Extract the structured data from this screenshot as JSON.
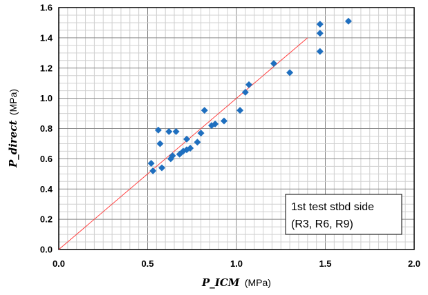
{
  "chart_data": {
    "type": "scatter",
    "xlabel": "P_ICM",
    "xlabel_unit": "(MPa)",
    "ylabel": "P_direct",
    "ylabel_unit": "(MPa)",
    "xlim": [
      0.0,
      2.0
    ],
    "ylim": [
      0.0,
      1.6
    ],
    "x_ticks": [
      "0.0",
      "0.5",
      "1.0",
      "1.5",
      "2.0"
    ],
    "y_ticks": [
      "0.0",
      "0.2",
      "0.4",
      "0.6",
      "0.8",
      "1.0",
      "1.2",
      "1.4",
      "1.6"
    ],
    "x_minor_step": 0.05,
    "y_minor_step": 0.05,
    "grid": true,
    "marker_color": "#1f6fbf",
    "series": [
      {
        "marker": "diamond",
        "points": [
          [
            0.52,
            0.57
          ],
          [
            0.53,
            0.52
          ],
          [
            0.56,
            0.79
          ],
          [
            0.57,
            0.7
          ],
          [
            0.58,
            0.54
          ],
          [
            0.62,
            0.78
          ],
          [
            0.63,
            0.6
          ],
          [
            0.64,
            0.62
          ],
          [
            0.66,
            0.78
          ],
          [
            0.68,
            0.63
          ],
          [
            0.7,
            0.65
          ],
          [
            0.72,
            0.73
          ],
          [
            0.72,
            0.66
          ],
          [
            0.74,
            0.67
          ],
          [
            0.78,
            0.71
          ],
          [
            0.8,
            0.77
          ],
          [
            0.82,
            0.92
          ],
          [
            0.86,
            0.82
          ],
          [
            0.88,
            0.83
          ],
          [
            0.93,
            0.85
          ],
          [
            1.02,
            0.92
          ],
          [
            1.05,
            1.04
          ],
          [
            1.07,
            1.09
          ],
          [
            1.21,
            1.23
          ],
          [
            1.3,
            1.17
          ],
          [
            1.47,
            1.49
          ],
          [
            1.47,
            1.43
          ],
          [
            1.47,
            1.31
          ],
          [
            1.63,
            1.51
          ]
        ]
      }
    ],
    "reference_line": {
      "from": [
        0.0,
        0.0
      ],
      "to": [
        1.4,
        1.4
      ],
      "color": "#ff4040"
    },
    "annotation": {
      "line1": "1st test stbd side",
      "line2": "(R3, R6, R9)"
    }
  }
}
